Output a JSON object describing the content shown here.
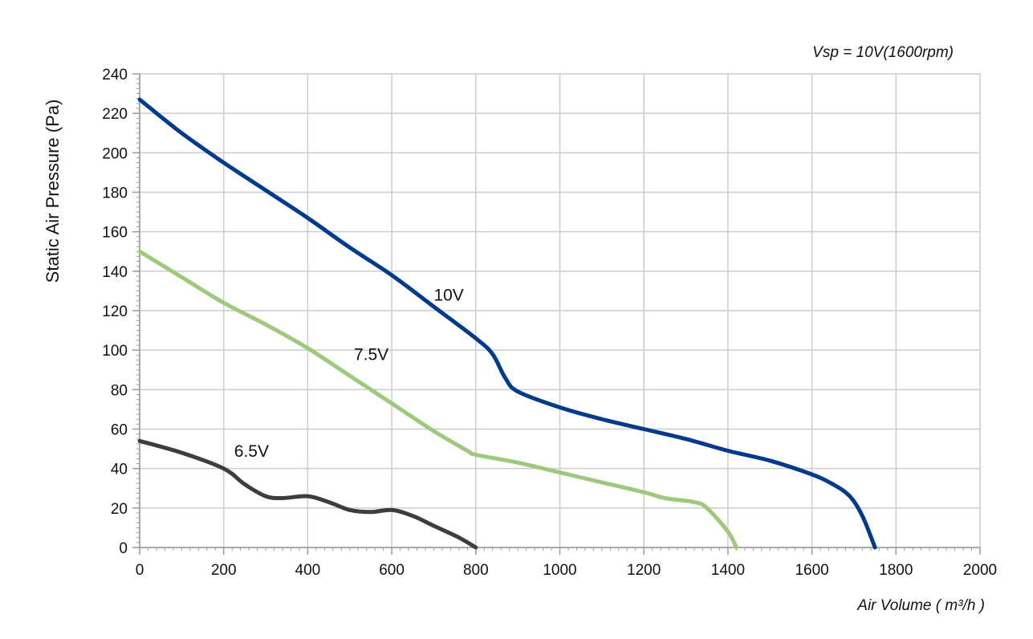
{
  "chart_data": {
    "type": "line",
    "subtitle": "Vsp = 10V(1600rpm)",
    "xlabel": "Air Volume ( m³/h )",
    "ylabel": "Static Air Pressure  (Pa)",
    "xlim": [
      0,
      2000
    ],
    "ylim": [
      0,
      240
    ],
    "x_ticks": [
      0,
      200,
      400,
      600,
      800,
      1000,
      1200,
      1400,
      1600,
      1800,
      2000
    ],
    "y_ticks": [
      0,
      20,
      40,
      60,
      80,
      100,
      120,
      140,
      160,
      180,
      200,
      220,
      240
    ],
    "grid": true,
    "series": [
      {
        "name": "10V",
        "color": "#003a8c",
        "points": [
          [
            0,
            227
          ],
          [
            100,
            210
          ],
          [
            200,
            195
          ],
          [
            300,
            181
          ],
          [
            400,
            167
          ],
          [
            500,
            152
          ],
          [
            600,
            138
          ],
          [
            700,
            122
          ],
          [
            800,
            106
          ],
          [
            840,
            98
          ],
          [
            870,
            86
          ],
          [
            900,
            79
          ],
          [
            1000,
            71
          ],
          [
            1100,
            65
          ],
          [
            1200,
            60
          ],
          [
            1300,
            55
          ],
          [
            1400,
            49
          ],
          [
            1500,
            44
          ],
          [
            1600,
            37
          ],
          [
            1650,
            32
          ],
          [
            1690,
            26
          ],
          [
            1720,
            16
          ],
          [
            1750,
            0
          ]
        ]
      },
      {
        "name": "7.5V",
        "color": "#9cc97c",
        "points": [
          [
            0,
            150
          ],
          [
            100,
            137
          ],
          [
            200,
            124
          ],
          [
            300,
            113
          ],
          [
            400,
            101
          ],
          [
            500,
            87
          ],
          [
            600,
            73
          ],
          [
            700,
            59
          ],
          [
            780,
            49
          ],
          [
            800,
            47
          ],
          [
            900,
            43
          ],
          [
            1000,
            38
          ],
          [
            1100,
            33
          ],
          [
            1200,
            28
          ],
          [
            1250,
            25
          ],
          [
            1320,
            23
          ],
          [
            1350,
            20
          ],
          [
            1400,
            8
          ],
          [
            1420,
            0
          ]
        ]
      },
      {
        "name": "6.5V",
        "color": "#3d3d3d",
        "points": [
          [
            0,
            54
          ],
          [
            100,
            48
          ],
          [
            200,
            40
          ],
          [
            250,
            32
          ],
          [
            300,
            26
          ],
          [
            340,
            25
          ],
          [
            400,
            26
          ],
          [
            450,
            23
          ],
          [
            500,
            19
          ],
          [
            550,
            18
          ],
          [
            600,
            19
          ],
          [
            650,
            16
          ],
          [
            700,
            11
          ],
          [
            760,
            5
          ],
          [
            800,
            0
          ]
        ]
      }
    ],
    "annotations": [
      {
        "text": "10V",
        "x": 700,
        "y": 125
      },
      {
        "text": "7.5V",
        "x": 510,
        "y": 95
      },
      {
        "text": "6.5V",
        "x": 225,
        "y": 46
      }
    ]
  }
}
